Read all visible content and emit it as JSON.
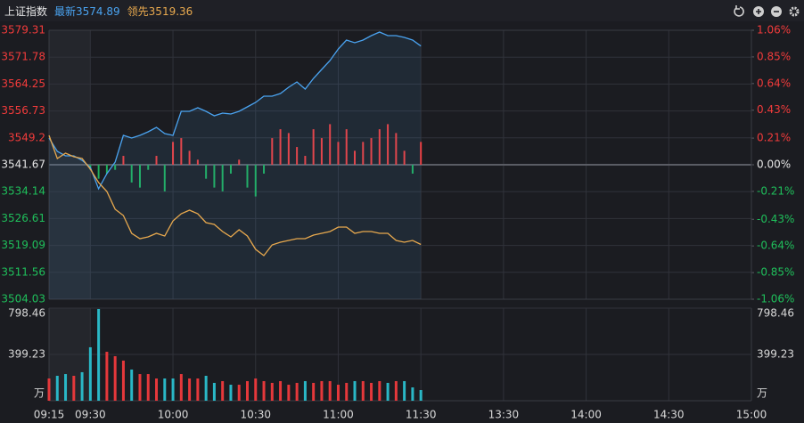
{
  "chart_data": [
    {
      "type": "line",
      "title": "上证指数",
      "x": [
        -15,
        -12,
        -9,
        -6,
        -3,
        0,
        3,
        6,
        9,
        12,
        15,
        18,
        21,
        24,
        27,
        30,
        33,
        36,
        39,
        42,
        45,
        48,
        51,
        54,
        57,
        60,
        63,
        66,
        69,
        72,
        75,
        78,
        81,
        84,
        87,
        90,
        93,
        96,
        99,
        102,
        105,
        108,
        111,
        114,
        117,
        120
      ],
      "series": [
        {
          "name": "最新",
          "color": "#4aa3f0",
          "values": [
            3549.14,
            3545.41,
            3544.16,
            3544.16,
            3542.91,
            3540.92,
            3534.93,
            3539.17,
            3542.41,
            3549.89,
            3549.14,
            3549.89,
            3550.89,
            3552.14,
            3550.39,
            3549.89,
            3556.62,
            3556.62,
            3557.62,
            3556.62,
            3555.38,
            3556.13,
            3555.88,
            3556.62,
            3557.87,
            3559.12,
            3560.86,
            3560.86,
            3561.61,
            3563.35,
            3564.85,
            3562.86,
            3565.85,
            3568.34,
            3570.83,
            3574.07,
            3576.57,
            3575.82,
            3576.57,
            3577.81,
            3578.81,
            3577.81,
            3577.81,
            3577.32,
            3576.57,
            3574.89
          ]
        },
        {
          "name": "领先",
          "color": "#e8a94e",
          "values": [
            3549.89,
            3543.41,
            3544.91,
            3543.91,
            3543.41,
            3540.42,
            3536.68,
            3534.19,
            3529.2,
            3527.46,
            3522.47,
            3520.97,
            3521.47,
            3522.47,
            3521.72,
            3525.96,
            3527.95,
            3528.95,
            3527.95,
            3525.46,
            3524.96,
            3522.97,
            3521.47,
            3523.47,
            3521.72,
            3517.98,
            3516.24,
            3519.23,
            3519.98,
            3520.48,
            3520.97,
            3520.97,
            3521.97,
            3522.47,
            3522.97,
            3524.21,
            3524.21,
            3522.47,
            3522.97,
            3522.97,
            3522.47,
            3522.47,
            3520.48,
            3519.98,
            3520.48,
            3519.36
          ]
        }
      ],
      "bars": {
        "axis": "y2",
        "up_color": "#f23b3b",
        "down_color": "#1fae5b",
        "values": [
          null,
          null,
          null,
          null,
          null,
          -0.04,
          -0.11,
          -0.07,
          -0.04,
          0.07,
          -0.14,
          -0.18,
          -0.04,
          0.07,
          -0.21,
          0.18,
          0.21,
          0.11,
          0.04,
          -0.11,
          -0.18,
          -0.21,
          -0.07,
          0.04,
          -0.18,
          -0.25,
          -0.07,
          0.21,
          0.28,
          0.25,
          0.14,
          0.07,
          0.28,
          0.21,
          0.32,
          0.18,
          0.28,
          0.11,
          0.18,
          0.21,
          0.28,
          0.32,
          0.25,
          0.11,
          -0.07,
          0.18
        ]
      },
      "xlim": [
        -15,
        240
      ],
      "xticks": [
        {
          "value": -15,
          "label": "09:15"
        },
        {
          "value": 0,
          "label": "09:30"
        },
        {
          "value": 30,
          "label": "10:00"
        },
        {
          "value": 60,
          "label": "10:30"
        },
        {
          "value": 90,
          "label": "11:00"
        },
        {
          "value": 120,
          "label": "11:30"
        },
        {
          "value": 150,
          "label": "13:30"
        },
        {
          "value": 180,
          "label": "14:00"
        },
        {
          "value": 210,
          "label": "14:30"
        },
        {
          "value": 240,
          "label": "15:00"
        }
      ],
      "ylim": [
        3504.03,
        3579.31
      ],
      "yticks": [
        3579.31,
        3571.78,
        3564.25,
        3556.73,
        3549.2,
        3541.67,
        3534.14,
        3526.61,
        3519.09,
        3511.56,
        3504.03
      ],
      "y2lim": [
        -1.06,
        1.06
      ],
      "y2ticks": [
        {
          "value": 1.06,
          "label": "1.06%"
        },
        {
          "value": 0.85,
          "label": "0.85%"
        },
        {
          "value": 0.64,
          "label": "0.64%"
        },
        {
          "value": 0.43,
          "label": "0.43%"
        },
        {
          "value": 0.21,
          "label": "0.21%"
        },
        {
          "value": 0,
          "label": "0.00%"
        },
        {
          "value": -0.21,
          "label": "-0.21%"
        },
        {
          "value": -0.43,
          "label": "-0.43%"
        },
        {
          "value": -0.64,
          "label": "-0.64%"
        },
        {
          "value": -0.85,
          "label": "-0.85%"
        },
        {
          "value": -1.06,
          "label": "-1.06%"
        }
      ],
      "grid": true,
      "up_color": "#f23b3b",
      "down_color": "#1fbf5b",
      "flat_color": "#e6e6e6"
    },
    {
      "type": "bar",
      "unit": "万",
      "values": [
        192,
        215,
        230,
        215,
        246,
        461,
        791,
        422,
        384,
        346,
        269,
        230,
        230,
        192,
        192,
        192,
        230,
        192,
        192,
        215,
        154,
        169,
        138,
        138,
        169,
        192,
        169,
        154,
        169,
        138,
        154,
        169,
        154,
        169,
        169,
        138,
        154,
        169,
        169,
        154,
        169,
        154,
        169,
        169,
        115,
        92
      ],
      "ylim": [
        0,
        798.46
      ],
      "yticks": [
        399.23,
        798.46
      ],
      "up_color": "#e5383b",
      "down_color": "#2ab7c6"
    }
  ]
}
